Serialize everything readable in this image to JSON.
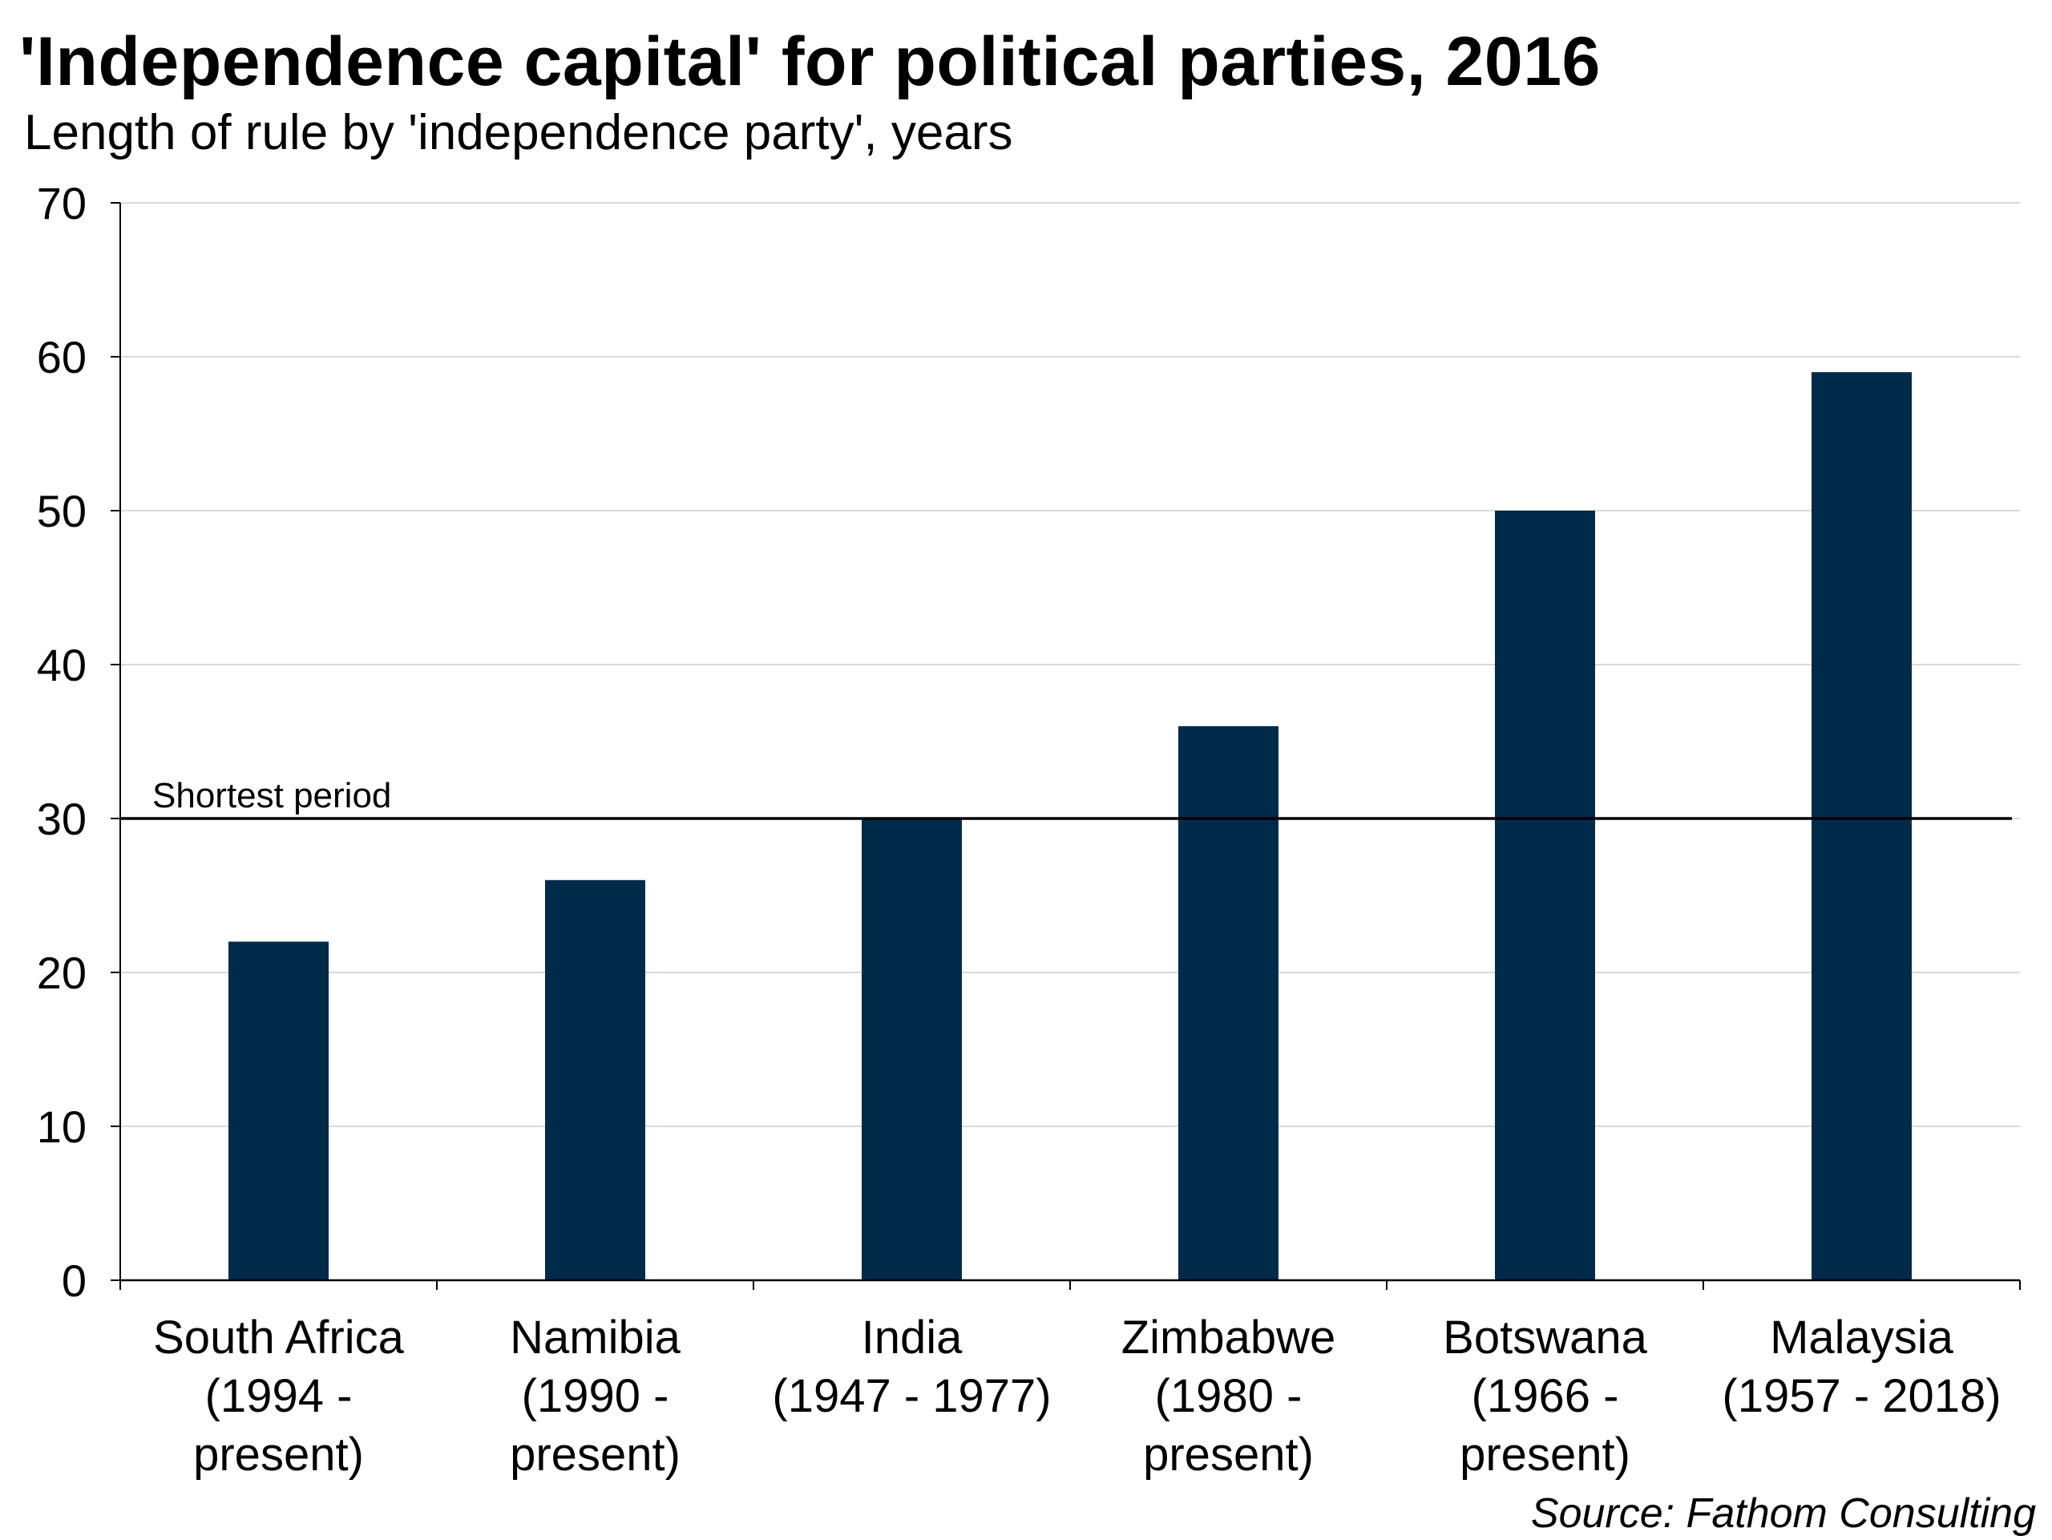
{
  "chart_data": {
    "type": "bar",
    "title": "'Independence capital' for political parties, 2016",
    "subtitle": "Length of rule by 'independence party', years",
    "source": "Source: Fathom Consulting",
    "categories": [
      [
        "South Africa",
        "(1994 -",
        "present)"
      ],
      [
        "Namibia",
        "(1990 -",
        "present)"
      ],
      [
        "India",
        "(1947 - 1977)"
      ],
      [
        "Zimbabwe",
        "(1980 -",
        "present)"
      ],
      [
        "Botswana",
        "(1966 -",
        "present)"
      ],
      [
        "Malaysia",
        "(1957 - 2018)"
      ]
    ],
    "values": [
      22,
      26,
      30,
      36,
      50,
      59
    ],
    "ylim": [
      0,
      70
    ],
    "yticks": [
      0,
      10,
      20,
      30,
      40,
      50,
      60,
      70
    ],
    "grid": true,
    "reference_line": {
      "value": 30,
      "label": "Shortest period"
    },
    "colors": {
      "bar": "#002a4a",
      "grid": "#d9d9d9",
      "axis": "#000000",
      "reference_line": "#000000"
    }
  }
}
